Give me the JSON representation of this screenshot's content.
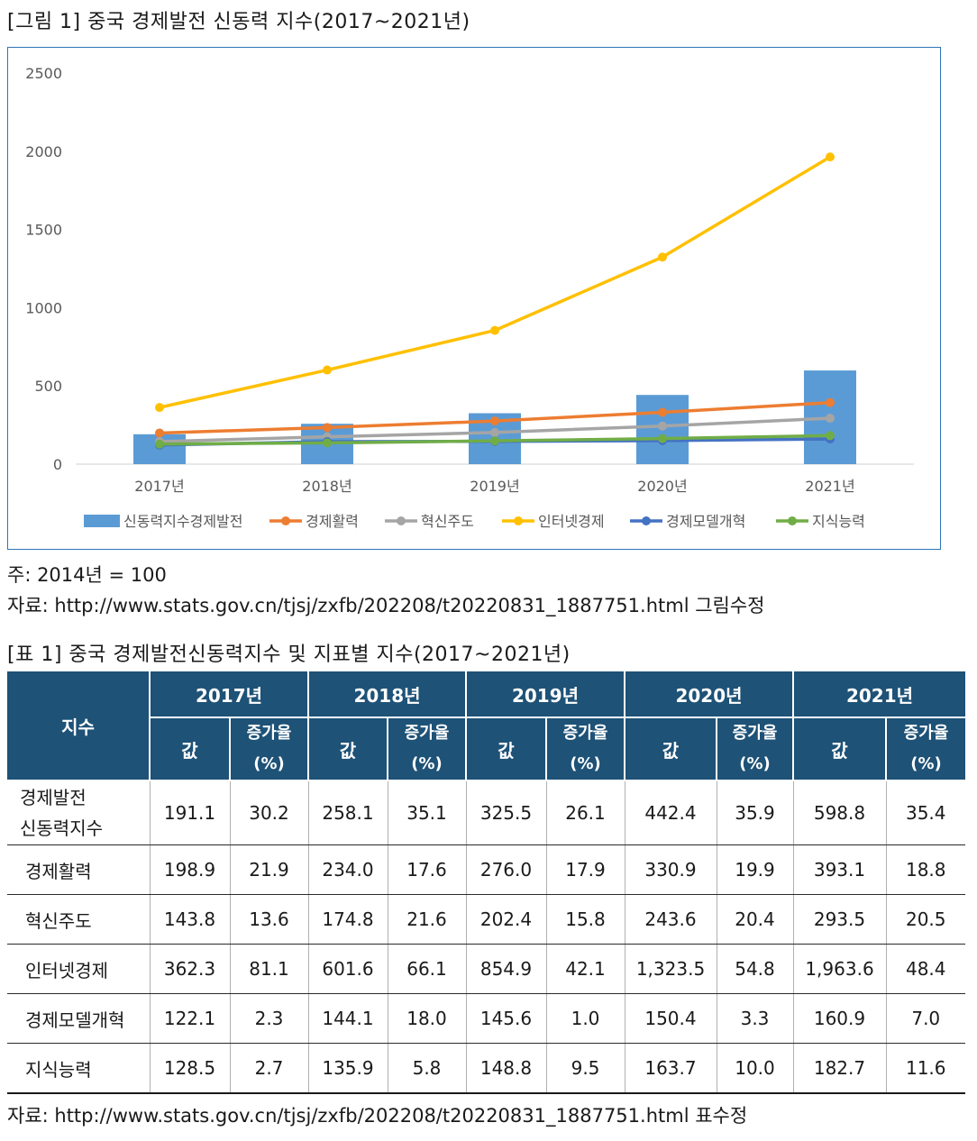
{
  "figure": {
    "title": "[그림 1] 중국 경제발전 신동력 지수(2017~2021년)",
    "note": "주: 2014년 = 100",
    "source": "자료: http://www.stats.gov.cn/tjsj/zxfb/202208/t20220831_1887751.html 그림수정"
  },
  "chart_data": {
    "type": "bar+line",
    "categories": [
      "2017년",
      "2018년",
      "2019년",
      "2020년",
      "2021년"
    ],
    "ylim": [
      0,
      2500
    ],
    "yticks": [
      "0",
      "500",
      "1000",
      "1500",
      "2000",
      "2500"
    ],
    "grid": false,
    "legend_position": "bottom",
    "series": [
      {
        "name": "신동력지수경제발전",
        "kind": "bar",
        "color": "#5b9bd5",
        "values": [
          191.1,
          258.1,
          325.5,
          442.4,
          598.8
        ]
      },
      {
        "name": "경제활력",
        "kind": "line",
        "color": "#ed7d31",
        "values": [
          198.9,
          234.0,
          276.0,
          330.9,
          393.1
        ]
      },
      {
        "name": "혁신주도",
        "kind": "line",
        "color": "#a5a5a5",
        "values": [
          143.8,
          174.8,
          202.4,
          243.6,
          293.5
        ]
      },
      {
        "name": "인터넷경제",
        "kind": "line",
        "color": "#ffc000",
        "values": [
          362.3,
          601.6,
          854.9,
          1323.5,
          1963.6
        ]
      },
      {
        "name": "경제모델개혁",
        "kind": "line",
        "color": "#4472c4",
        "values": [
          122.1,
          144.1,
          145.6,
          150.4,
          160.9
        ]
      },
      {
        "name": "지식능력",
        "kind": "line",
        "color": "#70ad47",
        "values": [
          128.5,
          135.9,
          148.8,
          163.7,
          182.7
        ]
      }
    ]
  },
  "table": {
    "title": "[표 1] 중국 경제발전신동력지수 및 지표별 지수(2017~2021년)",
    "corner": "지수",
    "years": [
      "2017년",
      "2018년",
      "2019년",
      "2020년",
      "2021년"
    ],
    "sub_value": "값",
    "sub_growth_1": "증가율",
    "sub_growth_2": "(%)",
    "rows": [
      {
        "name_1": "경제발전",
        "name_2": "신동력지수",
        "cells": [
          "191.1",
          "30.2",
          "258.1",
          "35.1",
          "325.5",
          "26.1",
          "442.4",
          "35.9",
          "598.8",
          "35.4"
        ]
      },
      {
        "name_1": "경제활력",
        "name_2": "",
        "cells": [
          "198.9",
          "21.9",
          "234.0",
          "17.6",
          "276.0",
          "17.9",
          "330.9",
          "19.9",
          "393.1",
          "18.8"
        ]
      },
      {
        "name_1": "혁신주도",
        "name_2": "",
        "cells": [
          "143.8",
          "13.6",
          "174.8",
          "21.6",
          "202.4",
          "15.8",
          "243.6",
          "20.4",
          "293.5",
          "20.5"
        ]
      },
      {
        "name_1": "인터넷경제",
        "name_2": "",
        "cells": [
          "362.3",
          "81.1",
          "601.6",
          "66.1",
          "854.9",
          "42.1",
          "1,323.5",
          "54.8",
          "1,963.6",
          "48.4"
        ]
      },
      {
        "name_1": "경제모델개혁",
        "name_2": "",
        "cells": [
          "122.1",
          "2.3",
          "144.1",
          "18.0",
          "145.6",
          "1.0",
          "150.4",
          "3.3",
          "160.9",
          "7.0"
        ]
      },
      {
        "name_1": "지식능력",
        "name_2": "",
        "cells": [
          "128.5",
          "2.7",
          "135.9",
          "5.8",
          "148.8",
          "9.5",
          "163.7",
          "10.0",
          "182.7",
          "11.6"
        ]
      }
    ],
    "source": "자료: http://www.stats.gov.cn/tjsj/zxfb/202208/t20220831_1887751.html 표수정"
  }
}
